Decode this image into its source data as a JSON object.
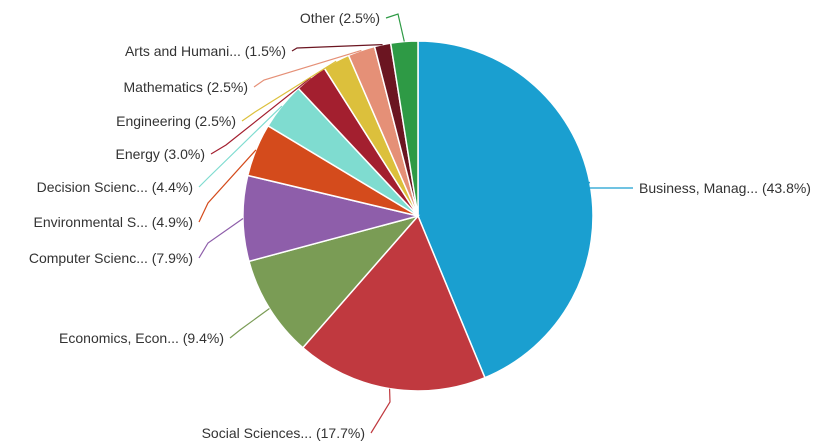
{
  "chart_data": {
    "type": "pie",
    "title": "",
    "legend": "none",
    "slices": [
      {
        "label": "Business, Manag... (43.8%)",
        "category": "Business, Manag...",
        "value": 43.8,
        "color": "#1a9fd0"
      },
      {
        "label": "Social Sciences... (17.7%)",
        "category": "Social Sciences...",
        "value": 17.7,
        "color": "#c0393f"
      },
      {
        "label": "Economics, Econ... (9.4%)",
        "category": "Economics, Econ...",
        "value": 9.4,
        "color": "#7a9c55"
      },
      {
        "label": "Computer Scienc... (7.9%)",
        "category": "Computer Scienc...",
        "value": 7.9,
        "color": "#8e5eaa"
      },
      {
        "label": "Environmental S... (4.9%)",
        "category": "Environmental S...",
        "value": 4.9,
        "color": "#d44b1c"
      },
      {
        "label": "Decision Scienc... (4.4%)",
        "category": "Decision Scienc...",
        "value": 4.4,
        "color": "#7fdcd0"
      },
      {
        "label": "Energy (3.0%)",
        "category": "Energy",
        "value": 3.0,
        "color": "#a31f2f"
      },
      {
        "label": "Engineering (2.5%)",
        "category": "Engineering",
        "value": 2.5,
        "color": "#dcc03c"
      },
      {
        "label": "Mathematics (2.5%)",
        "category": "Mathematics",
        "value": 2.5,
        "color": "#e59077"
      },
      {
        "label": "Arts and Humani... (1.5%)",
        "category": "Arts and Humani...",
        "value": 1.5,
        "color": "#6b1521"
      },
      {
        "label": "Other (2.5%)",
        "category": "Other",
        "value": 2.5,
        "color": "#2e9a45"
      }
    ]
  }
}
